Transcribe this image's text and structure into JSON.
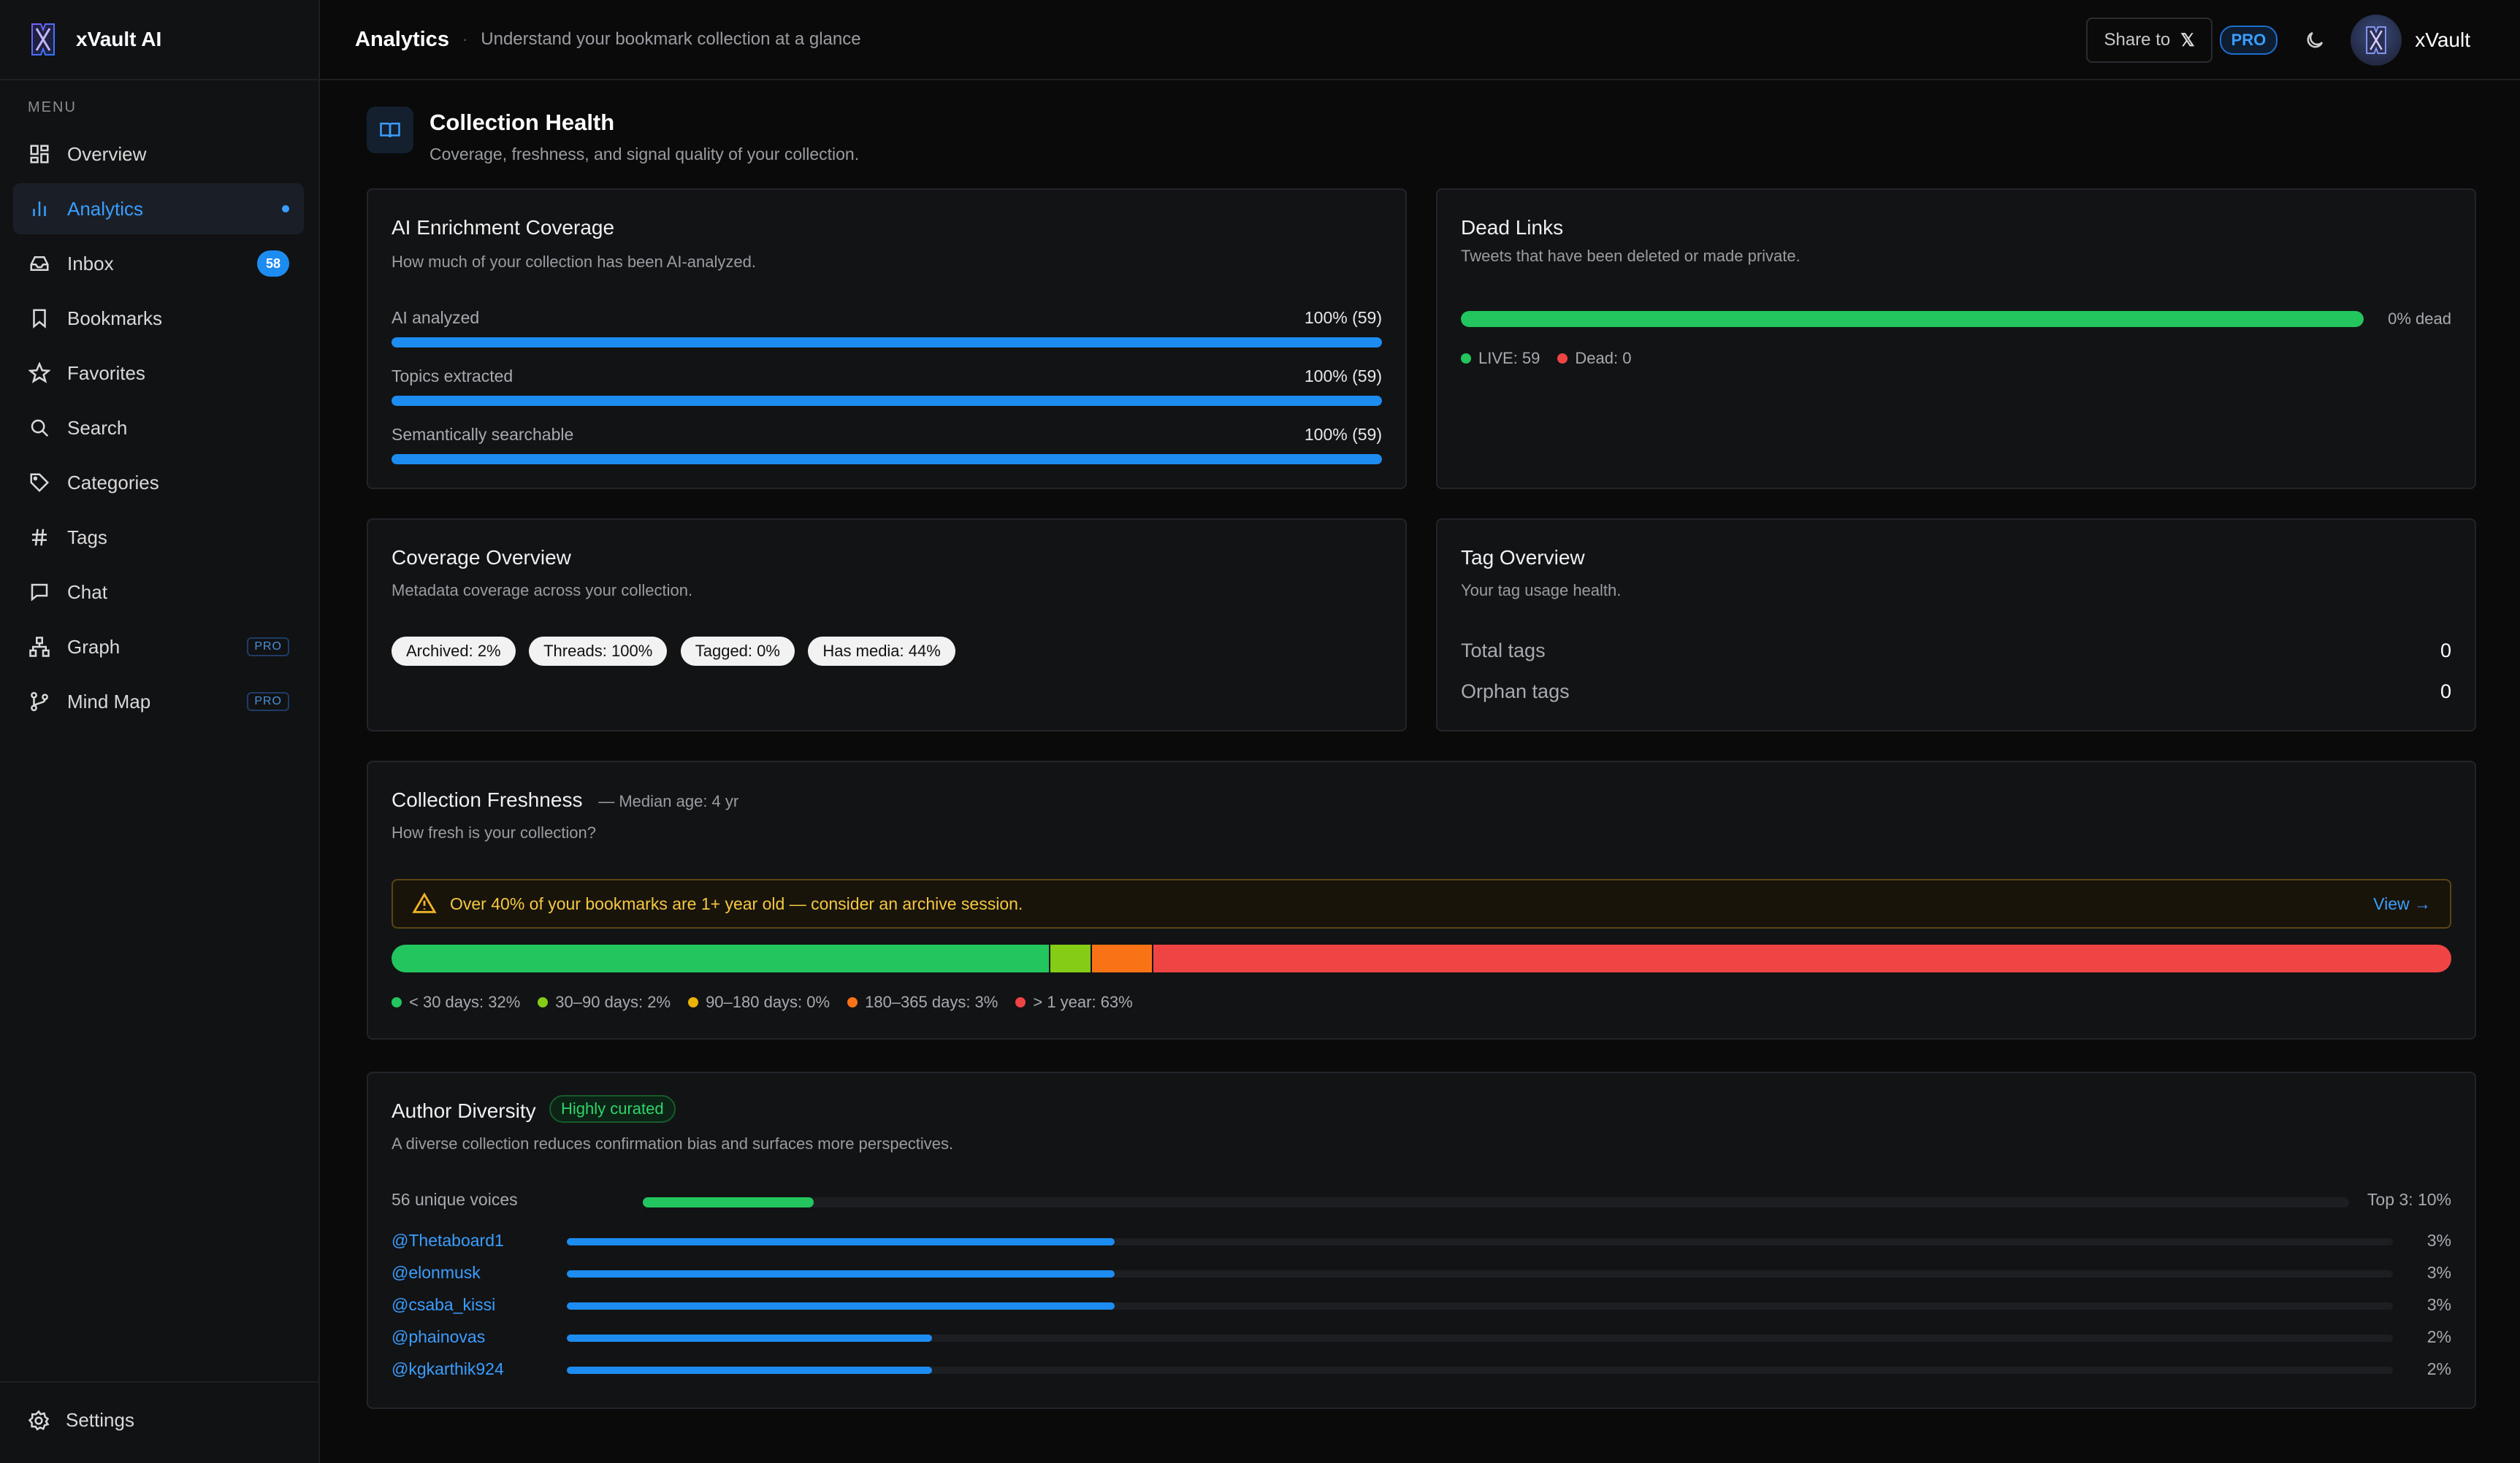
{
  "brand": {
    "name": "xVault AI"
  },
  "sidebar": {
    "menu_label": "MENU",
    "items": [
      {
        "label": "Overview",
        "icon": "grid-icon"
      },
      {
        "label": "Analytics",
        "icon": "bar-chart-icon",
        "active": true
      },
      {
        "label": "Inbox",
        "icon": "inbox-icon",
        "badge": "58"
      },
      {
        "label": "Bookmarks",
        "icon": "bookmark-icon"
      },
      {
        "label": "Favorites",
        "icon": "star-icon"
      },
      {
        "label": "Search",
        "icon": "search-icon"
      },
      {
        "label": "Categories",
        "icon": "tag-icon"
      },
      {
        "label": "Tags",
        "icon": "hash-icon"
      },
      {
        "label": "Chat",
        "icon": "chat-icon"
      },
      {
        "label": "Graph",
        "icon": "graph-icon",
        "pro": "PRO"
      },
      {
        "label": "Mind Map",
        "icon": "branch-icon",
        "pro": "PRO"
      }
    ],
    "settings_label": "Settings"
  },
  "header": {
    "title": "Analytics",
    "separator": "·",
    "subtitle": "Understand your bookmark collection at a glance",
    "share_label": "Share to",
    "share_icon": "𝕏",
    "pro_label": "PRO",
    "user_name": "xVault"
  },
  "section": {
    "title": "Collection Health",
    "subtitle": "Coverage, freshness, and signal quality of your collection."
  },
  "enrichment": {
    "title": "AI Enrichment Coverage",
    "subtitle": "How much of your collection has been AI-analyzed.",
    "rows": [
      {
        "label": "AI analyzed",
        "value": "100% (59)",
        "pct": 100
      },
      {
        "label": "Topics extracted",
        "value": "100% (59)",
        "pct": 100
      },
      {
        "label": "Semantically searchable",
        "value": "100% (59)",
        "pct": 100
      }
    ],
    "color": "#1d8cf0"
  },
  "dead_links": {
    "title": "Dead Links",
    "subtitle": "Tweets that have been deleted or made private.",
    "live_pct": 100,
    "dead_label": "0% dead",
    "live_text": "LIVE: 59",
    "dead_text": "Dead: 0",
    "live_color": "#22c55e",
    "dead_color": "#ef4444"
  },
  "coverage": {
    "title": "Coverage Overview",
    "subtitle": "Metadata coverage across your collection.",
    "pills": [
      "Archived: 2%",
      "Threads: 100%",
      "Tagged: 0%",
      "Has media: 44%"
    ]
  },
  "tags": {
    "title": "Tag Overview",
    "subtitle": "Your tag usage health.",
    "total_label": "Total tags",
    "total_value": "0",
    "orphan_label": "Orphan tags",
    "orphan_value": "0"
  },
  "freshness": {
    "title": "Collection Freshness",
    "median": "— Median age: 4 yr",
    "subtitle": "How fresh is your collection?",
    "warning": "Over 40% of your bookmarks are 1+ year old — consider an archive session.",
    "view_label": "View →",
    "segments": [
      {
        "label": "< 30 days: 32%",
        "pct": 32,
        "color": "#22c55e"
      },
      {
        "label": "30–90 days: 2%",
        "pct": 2,
        "color": "#84cc16"
      },
      {
        "label": "90–180 days: 0%",
        "pct": 0,
        "color": "#eab308"
      },
      {
        "label": "180–365 days: 3%",
        "pct": 3,
        "color": "#f97316"
      },
      {
        "label": "> 1 year: 63%",
        "pct": 63,
        "color": "#ef4444"
      }
    ]
  },
  "authors": {
    "title": "Author Diversity",
    "badge": "Highly curated",
    "subtitle": "A diverse collection reduces confirmation bias and surfaces more perspectives.",
    "unique_label": "56 unique voices",
    "unique_pct": 10,
    "top_label": "Top 3: 10%",
    "rows": [
      {
        "name": "@Thetaboard1",
        "pct_text": "3%",
        "pct": 3
      },
      {
        "name": "@elonmusk",
        "pct_text": "3%",
        "pct": 3
      },
      {
        "name": "@csaba_kissi",
        "pct_text": "3%",
        "pct": 3
      },
      {
        "name": "@phainovas",
        "pct_text": "2%",
        "pct": 2
      },
      {
        "name": "@kgkarthik924",
        "pct_text": "2%",
        "pct": 2
      }
    ]
  }
}
